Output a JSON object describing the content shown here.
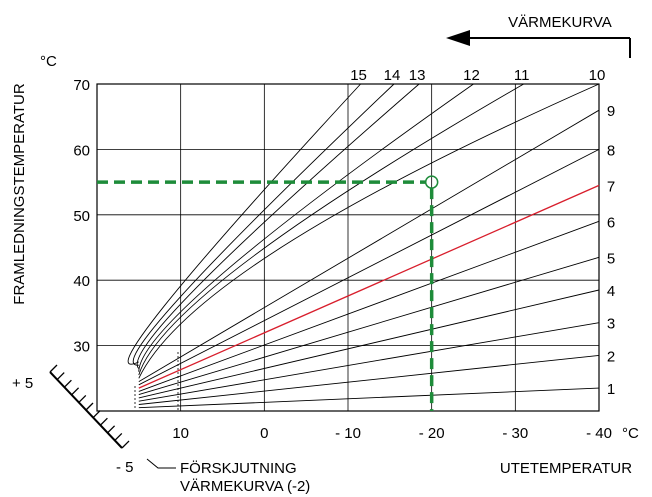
{
  "chart_data": {
    "type": "line",
    "title": "VÄRMEKURVA",
    "ylabel": "FRAMLEDNINGSTEMPERATUR",
    "y_unit": "°C",
    "xlabel": "UTETEMPERATUR",
    "x_unit": "°C",
    "x_ticks": [
      "10",
      "0",
      "- 10",
      "- 20",
      "- 30",
      "- 40"
    ],
    "x_tick_values": [
      10,
      0,
      -10,
      -20,
      -30,
      -40
    ],
    "y_ticks": [
      30,
      40,
      50,
      60,
      70
    ],
    "xlim": [
      20,
      -40
    ],
    "ylim": [
      20,
      70
    ],
    "highlight_curve": "7",
    "highlight_color": "#d81e2c",
    "reference_point": {
      "x": -20,
      "y": 55
    },
    "reference_color": "#1e8c3a",
    "curves": [
      {
        "name": "1",
        "label_side": "right",
        "points": [
          [
            15,
            20.5
          ],
          [
            -40,
            23.5
          ]
        ]
      },
      {
        "name": "2",
        "label_side": "right",
        "points": [
          [
            15,
            21
          ],
          [
            -40,
            28.5
          ]
        ]
      },
      {
        "name": "3",
        "label_side": "right",
        "points": [
          [
            15,
            21.5
          ],
          [
            -40,
            33.5
          ]
        ]
      },
      {
        "name": "4",
        "label_side": "right",
        "points": [
          [
            15,
            22
          ],
          [
            -40,
            38.5
          ]
        ]
      },
      {
        "name": "5",
        "label_side": "right",
        "points": [
          [
            15,
            22.5
          ],
          [
            -40,
            43.5
          ]
        ]
      },
      {
        "name": "6",
        "label_side": "right",
        "points": [
          [
            15,
            23
          ],
          [
            -40,
            49
          ]
        ]
      },
      {
        "name": "7",
        "label_side": "right",
        "points": [
          [
            15,
            23.5
          ],
          [
            -40,
            54.5
          ]
        ]
      },
      {
        "name": "8",
        "label_side": "right",
        "points": [
          [
            15,
            24
          ],
          [
            -40,
            60
          ]
        ]
      },
      {
        "name": "9",
        "label_side": "right",
        "points": [
          [
            15,
            24.5
          ],
          [
            -40,
            66
          ]
        ]
      },
      {
        "name": "10",
        "label_side": "top",
        "points": [
          [
            15,
            25
          ],
          [
            -2,
            45
          ],
          [
            -40,
            70
          ]
        ]
      },
      {
        "name": "11",
        "label_side": "top",
        "points": [
          [
            15,
            25.5
          ],
          [
            2,
            43
          ],
          [
            -31,
            70
          ]
        ]
      },
      {
        "name": "12",
        "label_side": "top",
        "points": [
          [
            15,
            26
          ],
          [
            5,
            41
          ],
          [
            -25,
            70
          ]
        ]
      },
      {
        "name": "13",
        "label_side": "top",
        "points": [
          [
            15,
            26.5
          ],
          [
            8,
            39
          ],
          [
            -18.5,
            70
          ]
        ]
      },
      {
        "name": "14",
        "label_side": "top",
        "points": [
          [
            15,
            27
          ],
          [
            10,
            37.5
          ],
          [
            -15.5,
            70
          ]
        ]
      },
      {
        "name": "15",
        "label_side": "top",
        "points": [
          [
            15,
            27.5
          ],
          [
            12,
            36
          ],
          [
            -11.5,
            70
          ]
        ]
      }
    ],
    "shift_scale": {
      "top_label": "+ 5",
      "bottom_label": "- 5",
      "caption_line1": "FÖRSKJUTNING",
      "caption_line2": "VÄRMEKURVA (-2)"
    }
  }
}
